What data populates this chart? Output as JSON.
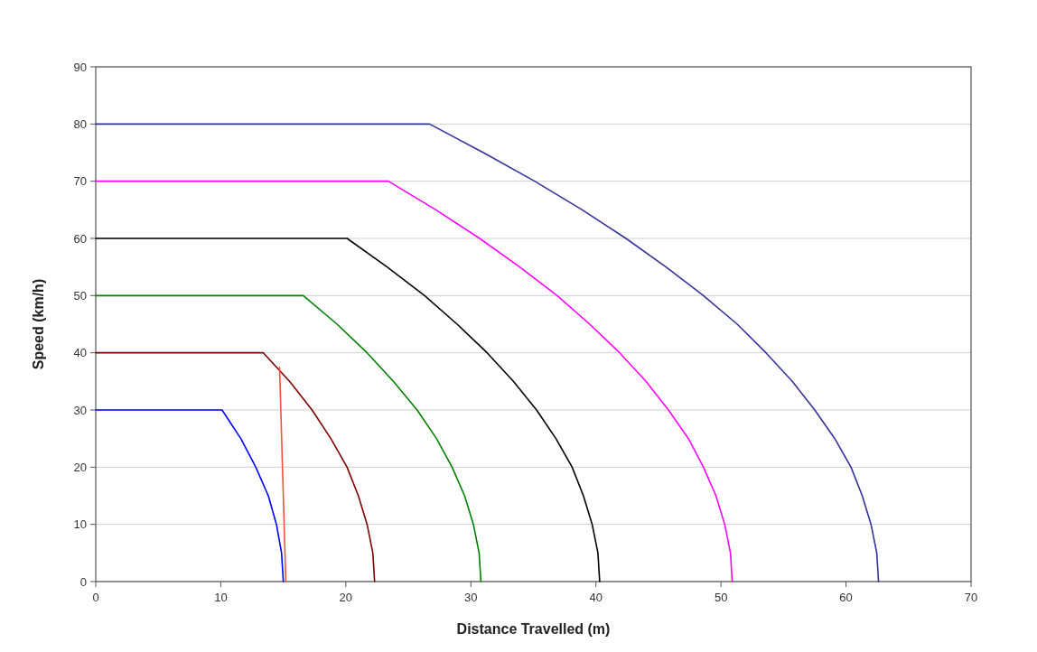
{
  "chart_data": {
    "type": "line",
    "xlabel": "Distance Travelled (m)",
    "ylabel": "Speed (km/h)",
    "xlim": [
      0,
      70
    ],
    "xticks": [
      0,
      10,
      20,
      30,
      40,
      50,
      60,
      70
    ],
    "ylim": [
      0,
      90
    ],
    "yticks": [
      0,
      10,
      20,
      30,
      40,
      50,
      60,
      70,
      80,
      90
    ],
    "grid": "y",
    "line_style": "solid",
    "series": [
      {
        "color": "#0000ff",
        "x": [
          0,
          10.1,
          11.6,
          12.8,
          13.8,
          14.45,
          14.86,
          15.0
        ],
        "values": [
          30,
          30,
          25,
          20,
          15,
          10,
          5,
          0
        ]
      },
      {
        "color": "#800000",
        "x": [
          0,
          13.4,
          15.5,
          17.3,
          18.8,
          20.1,
          21.0,
          21.7,
          22.16,
          22.3
        ],
        "values": [
          40,
          40,
          35,
          30,
          25,
          20,
          15,
          10,
          5,
          0
        ]
      },
      {
        "color": "#008000",
        "x": [
          0,
          16.6,
          19.3,
          21.7,
          23.8,
          25.7,
          27.25,
          28.5,
          29.5,
          30.2,
          30.66,
          30.8
        ],
        "values": [
          50,
          50,
          45,
          40,
          35,
          30,
          25,
          20,
          15,
          10,
          5,
          0
        ]
      },
      {
        "color": "#000000",
        "x": [
          0,
          20.1,
          23.3,
          26.3,
          28.9,
          31.3,
          33.4,
          35.25,
          36.8,
          38.1,
          39.0,
          39.7,
          40.16,
          40.3
        ],
        "values": [
          60,
          60,
          55,
          50,
          45,
          40,
          35,
          30,
          25,
          20,
          15,
          10,
          5,
          0
        ]
      },
      {
        "color": "#ff00ff",
        "x": [
          0,
          23.4,
          27.2,
          30.7,
          33.9,
          36.9,
          39.5,
          41.9,
          44.0,
          45.8,
          47.4,
          48.6,
          49.6,
          50.3,
          50.76,
          50.9
        ],
        "values": [
          70,
          70,
          65,
          60,
          55,
          50,
          45,
          40,
          35,
          30,
          25,
          20,
          15,
          10,
          5,
          0
        ]
      },
      {
        "color": "#333399",
        "x": [
          0,
          26.7,
          31.0,
          35.1,
          38.9,
          42.4,
          45.6,
          48.6,
          51.3,
          53.6,
          55.7,
          57.5,
          59.1,
          60.4,
          61.3,
          62.0,
          62.46,
          62.6
        ],
        "values": [
          80,
          80,
          75,
          70,
          65,
          60,
          55,
          50,
          45,
          40,
          35,
          30,
          25,
          20,
          15,
          10,
          5,
          0
        ]
      },
      {
        "color": "#f4513f",
        "x": [
          14.7,
          15.2
        ],
        "values": [
          37.5,
          0
        ]
      }
    ]
  }
}
